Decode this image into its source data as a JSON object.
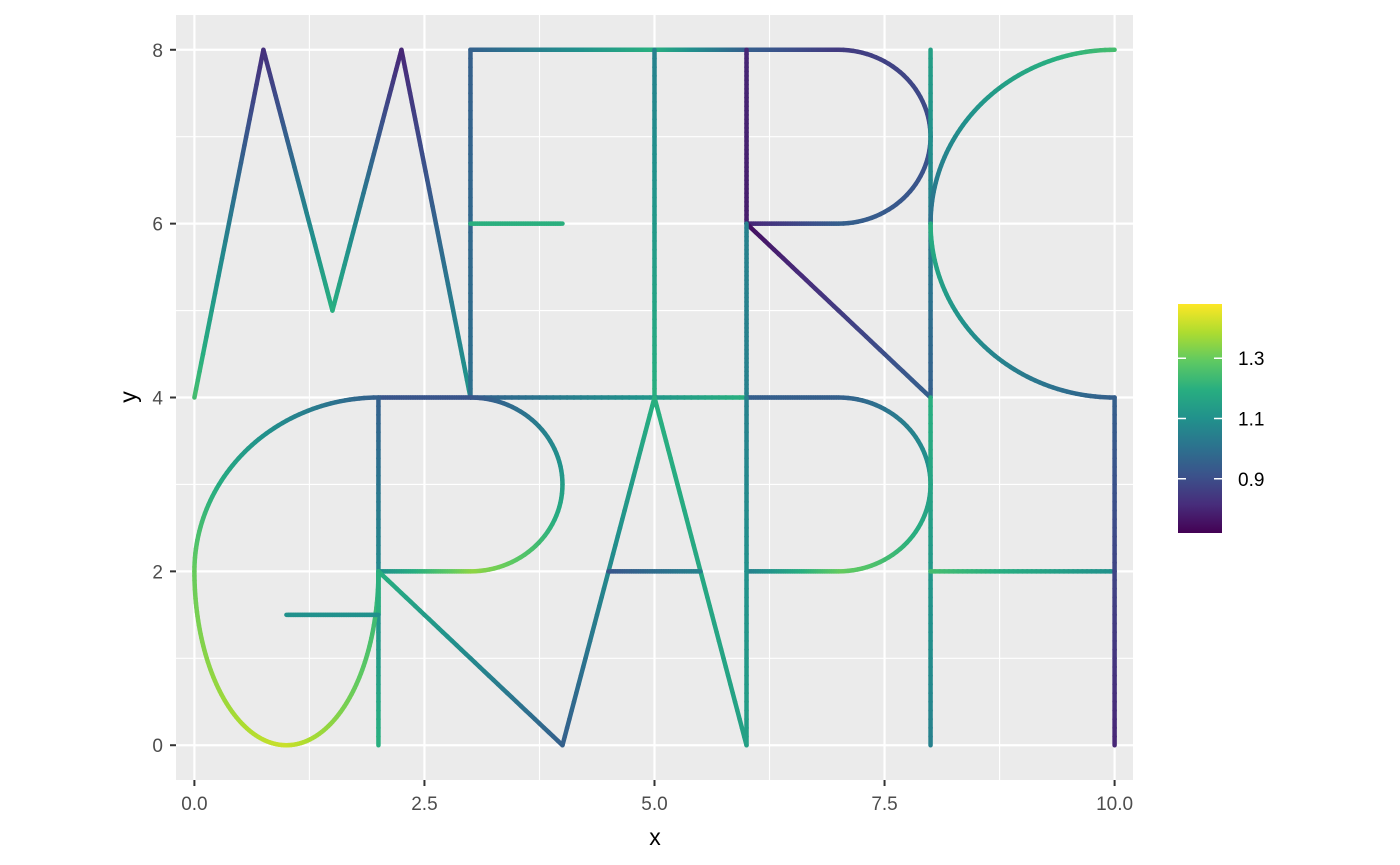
{
  "chart_data": {
    "type": "line",
    "title": "",
    "xlabel": "x",
    "ylabel": "y",
    "xlim": [
      -0.2,
      10.2
    ],
    "ylim": [
      -0.4,
      8.4
    ],
    "x_ticks": [
      0,
      2.5,
      5,
      7.5,
      10
    ],
    "x_tick_labels": [
      "0.0",
      "2.5",
      "5.0",
      "7.5",
      "10.0"
    ],
    "y_ticks": [
      0,
      2,
      4,
      6,
      8
    ],
    "y_tick_labels": [
      "0",
      "2",
      "4",
      "6",
      "8"
    ],
    "grid": true,
    "legend": {
      "placement": "right",
      "type": "colorbar",
      "palette": "viridis",
      "range": [
        0.72,
        1.48
      ],
      "ticks": [
        0.9,
        1.1,
        1.3
      ],
      "tick_labels": [
        "0.9",
        "1.1",
        "1.3"
      ]
    },
    "edges": [
      {
        "kind": "line",
        "from": [
          0,
          4
        ],
        "to": [
          0.75,
          8
        ],
        "values": [
          1.25,
          0.82
        ]
      },
      {
        "kind": "line",
        "from": [
          0.75,
          8
        ],
        "to": [
          1.5,
          5
        ],
        "values": [
          0.82,
          1.2
        ]
      },
      {
        "kind": "line",
        "from": [
          1.5,
          5
        ],
        "to": [
          2.25,
          8
        ],
        "values": [
          1.2,
          0.8
        ]
      },
      {
        "kind": "line",
        "from": [
          2.25,
          8
        ],
        "to": [
          3,
          4
        ],
        "values": [
          0.8,
          1.12
        ]
      },
      {
        "kind": "line",
        "from": [
          3,
          4
        ],
        "to": [
          3,
          8
        ],
        "values": [
          1.0,
          0.95
        ]
      },
      {
        "kind": "line",
        "from": [
          3,
          6
        ],
        "to": [
          4,
          6
        ],
        "values": [
          1.2,
          1.2
        ]
      },
      {
        "kind": "line",
        "from": [
          3,
          8
        ],
        "to": [
          5,
          8
        ],
        "values": [
          0.95,
          1.2
        ]
      },
      {
        "kind": "line",
        "from": [
          5,
          8
        ],
        "to": [
          6,
          8
        ],
        "values": [
          1.2,
          0.95
        ]
      },
      {
        "kind": "line",
        "from": [
          6,
          8
        ],
        "to": [
          7,
          8
        ],
        "values": [
          0.95,
          0.85
        ]
      },
      {
        "kind": "arc",
        "center": [
          7,
          7
        ],
        "radius": 1,
        "start_deg": 90,
        "end_deg": -90,
        "values": [
          0.85,
          0.95
        ]
      },
      {
        "kind": "line",
        "from": [
          7,
          6
        ],
        "to": [
          6,
          6
        ],
        "values": [
          0.95,
          0.8
        ]
      },
      {
        "kind": "line",
        "from": [
          5,
          8
        ],
        "to": [
          5,
          4
        ],
        "values": [
          1.05,
          1.2
        ]
      },
      {
        "kind": "line",
        "from": [
          6,
          8
        ],
        "to": [
          6,
          6
        ],
        "values": [
          0.8,
          0.78
        ]
      },
      {
        "kind": "line",
        "from": [
          6,
          6
        ],
        "to": [
          8,
          4
        ],
        "values": [
          0.75,
          0.95
        ]
      },
      {
        "kind": "line",
        "from": [
          8,
          8
        ],
        "to": [
          8,
          4
        ],
        "values": [
          1.15,
          0.95
        ]
      },
      {
        "kind": "line",
        "from": [
          6,
          6
        ],
        "to": [
          6,
          4
        ],
        "values": [
          1.05,
          1.05
        ]
      },
      {
        "kind": "arc",
        "center": [
          10,
          6
        ],
        "radius": 2,
        "start_deg": 90,
        "end_deg": 180,
        "values": [
          1.25,
          1.0
        ]
      },
      {
        "kind": "arc",
        "center": [
          10,
          6
        ],
        "radius": 2,
        "start_deg": 180,
        "end_deg": 270,
        "values": [
          1.2,
          0.95
        ]
      },
      {
        "kind": "line",
        "from": [
          3,
          4
        ],
        "to": [
          6,
          4
        ],
        "values": [
          0.95,
          1.2
        ]
      },
      {
        "kind": "line",
        "from": [
          6,
          4
        ],
        "to": [
          7,
          4
        ],
        "values": [
          0.95,
          0.95
        ]
      },
      {
        "kind": "arc",
        "center": [
          7,
          3
        ],
        "radius": 1,
        "start_deg": 90,
        "end_deg": -90,
        "values": [
          0.95,
          1.3
        ]
      },
      {
        "kind": "line",
        "from": [
          7,
          2
        ],
        "to": [
          6,
          2
        ],
        "values": [
          1.3,
          1.05
        ]
      },
      {
        "kind": "line",
        "from": [
          6,
          4
        ],
        "to": [
          6,
          0
        ],
        "values": [
          1.05,
          1.15
        ]
      },
      {
        "kind": "line",
        "from": [
          8,
          4
        ],
        "to": [
          8,
          0
        ],
        "values": [
          1.2,
          1.05
        ]
      },
      {
        "kind": "line",
        "from": [
          8,
          2
        ],
        "to": [
          10,
          2
        ],
        "values": [
          1.25,
          1.1
        ]
      },
      {
        "kind": "line",
        "from": [
          10,
          4
        ],
        "to": [
          10,
          0
        ],
        "values": [
          0.95,
          0.8
        ]
      },
      {
        "kind": "line",
        "from": [
          5,
          4
        ],
        "to": [
          4,
          0
        ],
        "values": [
          1.2,
          0.95
        ]
      },
      {
        "kind": "line",
        "from": [
          5,
          4
        ],
        "to": [
          6,
          0
        ],
        "values": [
          1.2,
          1.15
        ]
      },
      {
        "kind": "line",
        "from": [
          4.5,
          2
        ],
        "to": [
          5.5,
          2
        ],
        "values": [
          0.92,
          1.05
        ]
      },
      {
        "kind": "line",
        "from": [
          2,
          4
        ],
        "to": [
          3,
          4
        ],
        "values": [
          0.92,
          0.92
        ]
      },
      {
        "kind": "arc",
        "center": [
          3,
          3
        ],
        "radius": 1,
        "start_deg": 90,
        "end_deg": -90,
        "values": [
          0.92,
          1.35
        ]
      },
      {
        "kind": "line",
        "from": [
          3,
          2
        ],
        "to": [
          2,
          2
        ],
        "values": [
          1.35,
          1.1
        ]
      },
      {
        "kind": "line",
        "from": [
          2,
          4
        ],
        "to": [
          2,
          0
        ],
        "values": [
          0.95,
          1.2
        ]
      },
      {
        "kind": "line",
        "from": [
          2,
          2
        ],
        "to": [
          4,
          0
        ],
        "values": [
          1.2,
          0.95
        ]
      },
      {
        "kind": "quarter",
        "center": [
          2,
          2
        ],
        "rx": 2,
        "ry": 2,
        "start_deg": 90,
        "end_deg": 180,
        "values": [
          0.95,
          1.3
        ]
      },
      {
        "kind": "quarter",
        "center": [
          1,
          2
        ],
        "rx": 1,
        "ry": 2,
        "start_deg": 180,
        "end_deg": 270,
        "values": [
          1.3,
          1.42
        ]
      },
      {
        "kind": "quarter",
        "center": [
          1,
          2
        ],
        "rx": 1,
        "ry": 2,
        "start_deg": 270,
        "end_deg": 360,
        "values": [
          1.42,
          1.2
        ]
      },
      {
        "kind": "line",
        "from": [
          2,
          2
        ],
        "to": [
          2,
          1.5
        ],
        "values": [
          1.2,
          1.2
        ]
      },
      {
        "kind": "line",
        "from": [
          2,
          1.5
        ],
        "to": [
          1,
          1.5
        ],
        "values": [
          1.1,
          1.1
        ]
      }
    ]
  }
}
